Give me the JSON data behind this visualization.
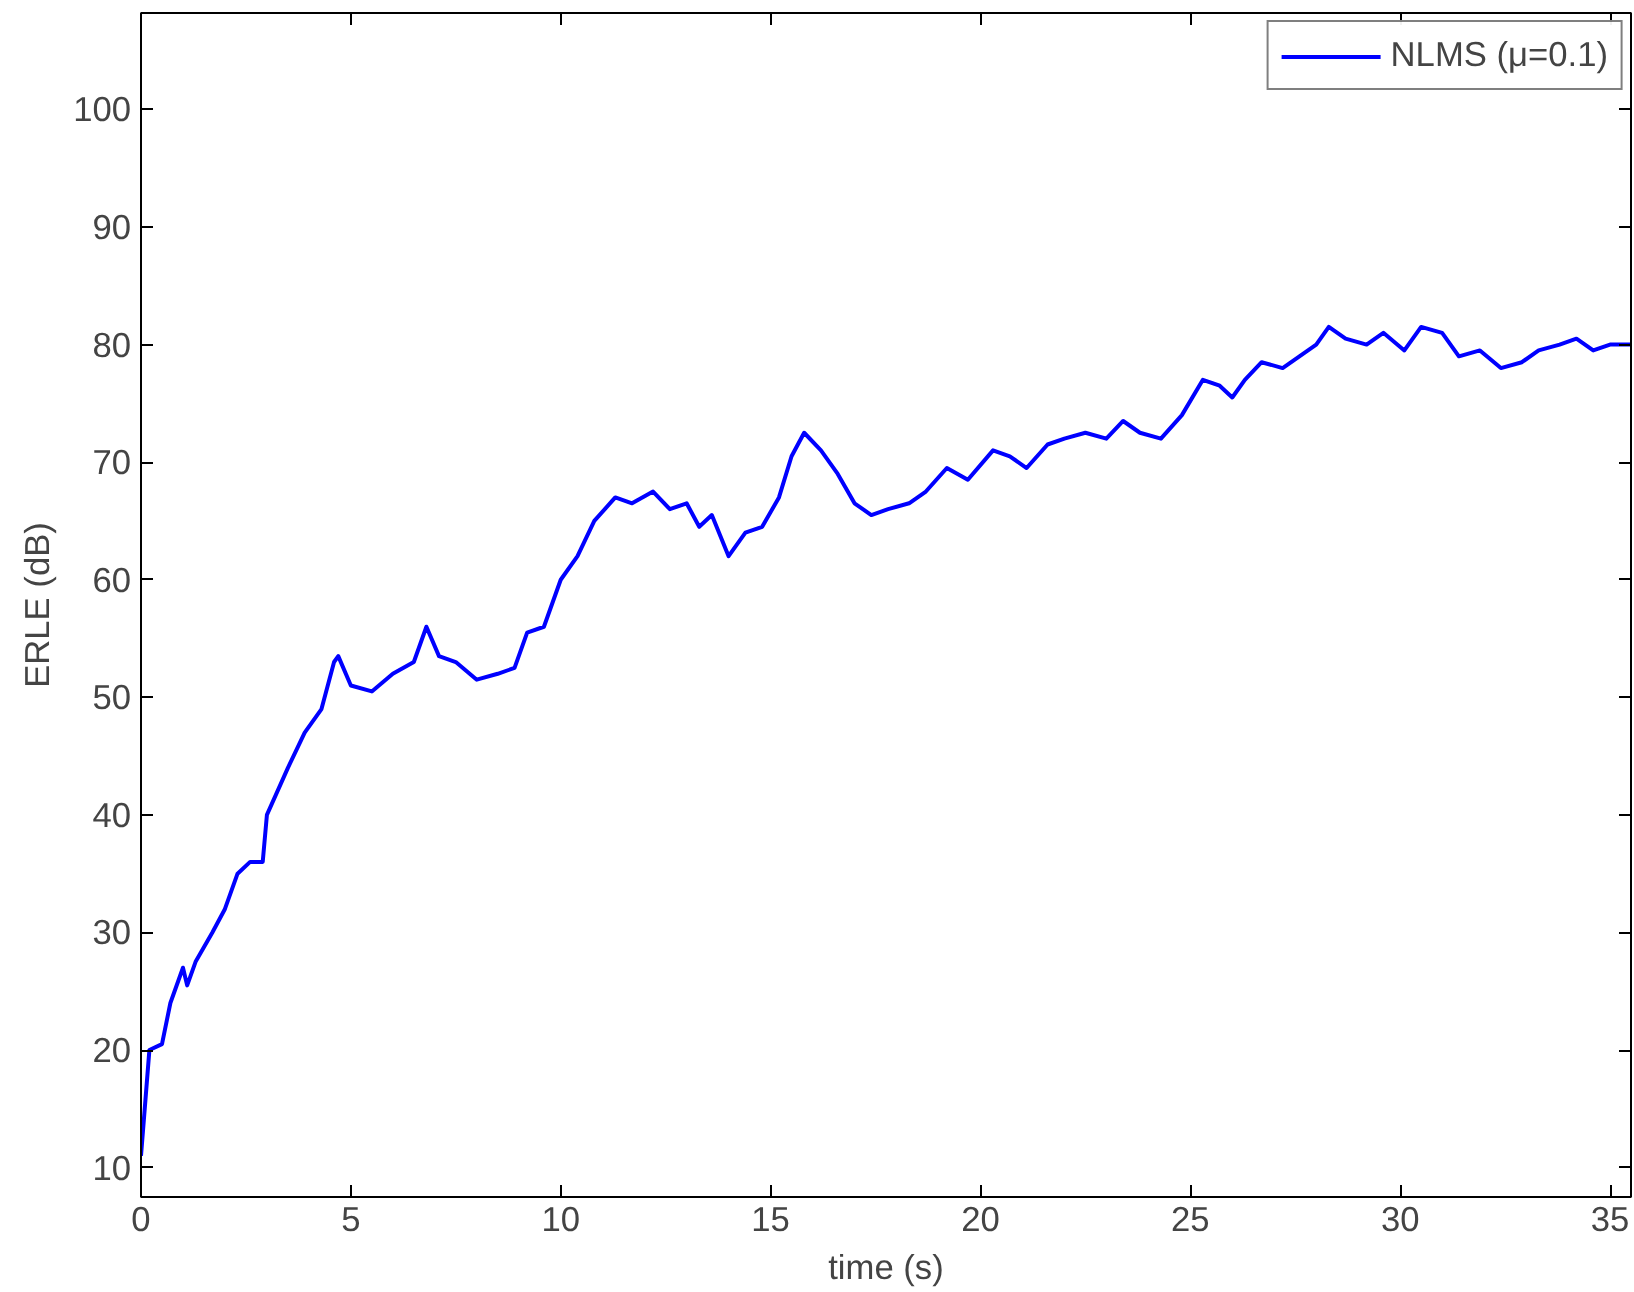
{
  "chart_data": {
    "type": "line",
    "xlabel": "time (s)",
    "ylabel": "ERLE (dB)",
    "xlim": [
      0,
      35.5
    ],
    "ylim": [
      7.5,
      108.2
    ],
    "xticks": [
      0,
      5,
      10,
      15,
      20,
      25,
      30,
      35
    ],
    "yticks": [
      10,
      20,
      30,
      40,
      50,
      60,
      70,
      80,
      90,
      100
    ],
    "grid": false,
    "legend": "top right",
    "marker": "none",
    "line_style": "solid",
    "x": [
      0,
      0.2,
      0.5,
      0.7,
      1.0,
      1.1,
      1.3,
      1.7,
      2.0,
      2.3,
      2.6,
      2.9,
      3.0,
      3.5,
      3.9,
      4.3,
      4.6,
      4.7,
      5.0,
      5.5,
      6.0,
      6.5,
      6.8,
      7.1,
      7.5,
      8.0,
      8.5,
      8.9,
      9.2,
      9.6,
      10.0,
      10.4,
      10.8,
      11.3,
      11.7,
      12.2,
      12.6,
      13.0,
      13.3,
      13.6,
      14.0,
      14.4,
      14.8,
      15.2,
      15.5,
      15.8,
      16.2,
      16.6,
      17.0,
      17.4,
      17.8,
      18.3,
      18.7,
      19.2,
      19.7,
      20.3,
      20.7,
      21.1,
      21.6,
      22.0,
      22.5,
      23.0,
      23.4,
      23.8,
      24.3,
      24.8,
      25.3,
      25.7,
      26.0,
      26.3,
      26.7,
      27.2,
      27.6,
      28.0,
      28.3,
      28.7,
      29.2,
      29.6,
      30.1,
      30.5,
      31.0,
      31.4,
      31.9,
      32.4,
      32.9,
      33.3,
      33.8,
      34.2,
      34.6,
      35.0,
      35.5
    ],
    "series": [
      {
        "name": "NLMS (μ=0.1)",
        "color": "#0000ff",
        "values": [
          11,
          20,
          20.5,
          24,
          27,
          25.5,
          27.5,
          30,
          32,
          35,
          36,
          36,
          40,
          44,
          47,
          49,
          53,
          53.5,
          51,
          50.5,
          52,
          53,
          56,
          53.5,
          53,
          51.5,
          52,
          52.5,
          55.5,
          56,
          60,
          62,
          65,
          67,
          66.5,
          67.5,
          66,
          66.5,
          64.5,
          65.5,
          62,
          64,
          64.5,
          67,
          70.5,
          72.5,
          71,
          69,
          66.5,
          65.5,
          66,
          66.5,
          67.5,
          69.5,
          68.5,
          71,
          70.5,
          69.5,
          71.5,
          72,
          72.5,
          72,
          73.5,
          72.5,
          72,
          74,
          77,
          76.5,
          75.5,
          77,
          78.5,
          78,
          79,
          80,
          81.5,
          80.5,
          80,
          81,
          79.5,
          81.5,
          81,
          79,
          79.5,
          78,
          78.5,
          79.5,
          80,
          80.5,
          79.5,
          80,
          80
        ]
      }
    ]
  }
}
